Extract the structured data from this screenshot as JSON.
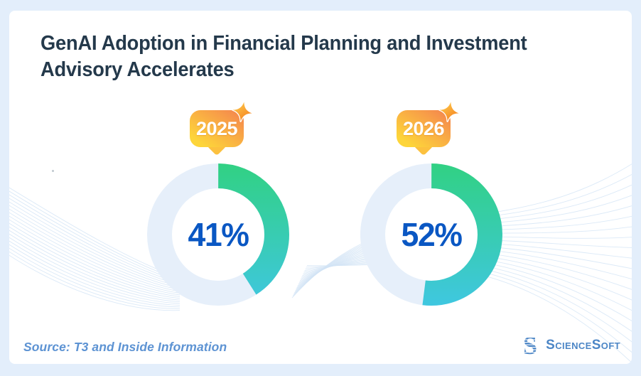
{
  "title": {
    "line1": "GenAI Adoption in Financial Planning and Investment",
    "line2": "Advisory Accelerates"
  },
  "logo": {
    "name": "ScienceSoft"
  },
  "chart_data": {
    "type": "pie",
    "subtype": "donut",
    "title": "GenAI Adoption in Financial Planning and Investment Advisory Accelerates",
    "source": "Source: T3 and Inside Information",
    "legend_position": "none",
    "series": [
      {
        "label": "2025",
        "value_pct": 41,
        "remainder_pct": 59,
        "display": "41%"
      },
      {
        "label": "2026",
        "value_pct": 52,
        "remainder_pct": 48,
        "display": "52%"
      }
    ],
    "colors": {
      "progress_gradient_top": "#31d183",
      "progress_gradient_bottom": "#3fc7e0",
      "track": "#e6effa",
      "value_text": "#0a57c3",
      "badge_gradient_yellow": "#fdd53a",
      "badge_gradient_orange": "#f2814f",
      "title_text": "#24394b",
      "source_text": "#5d93d3",
      "logo_blue": "#4c86c6"
    }
  }
}
